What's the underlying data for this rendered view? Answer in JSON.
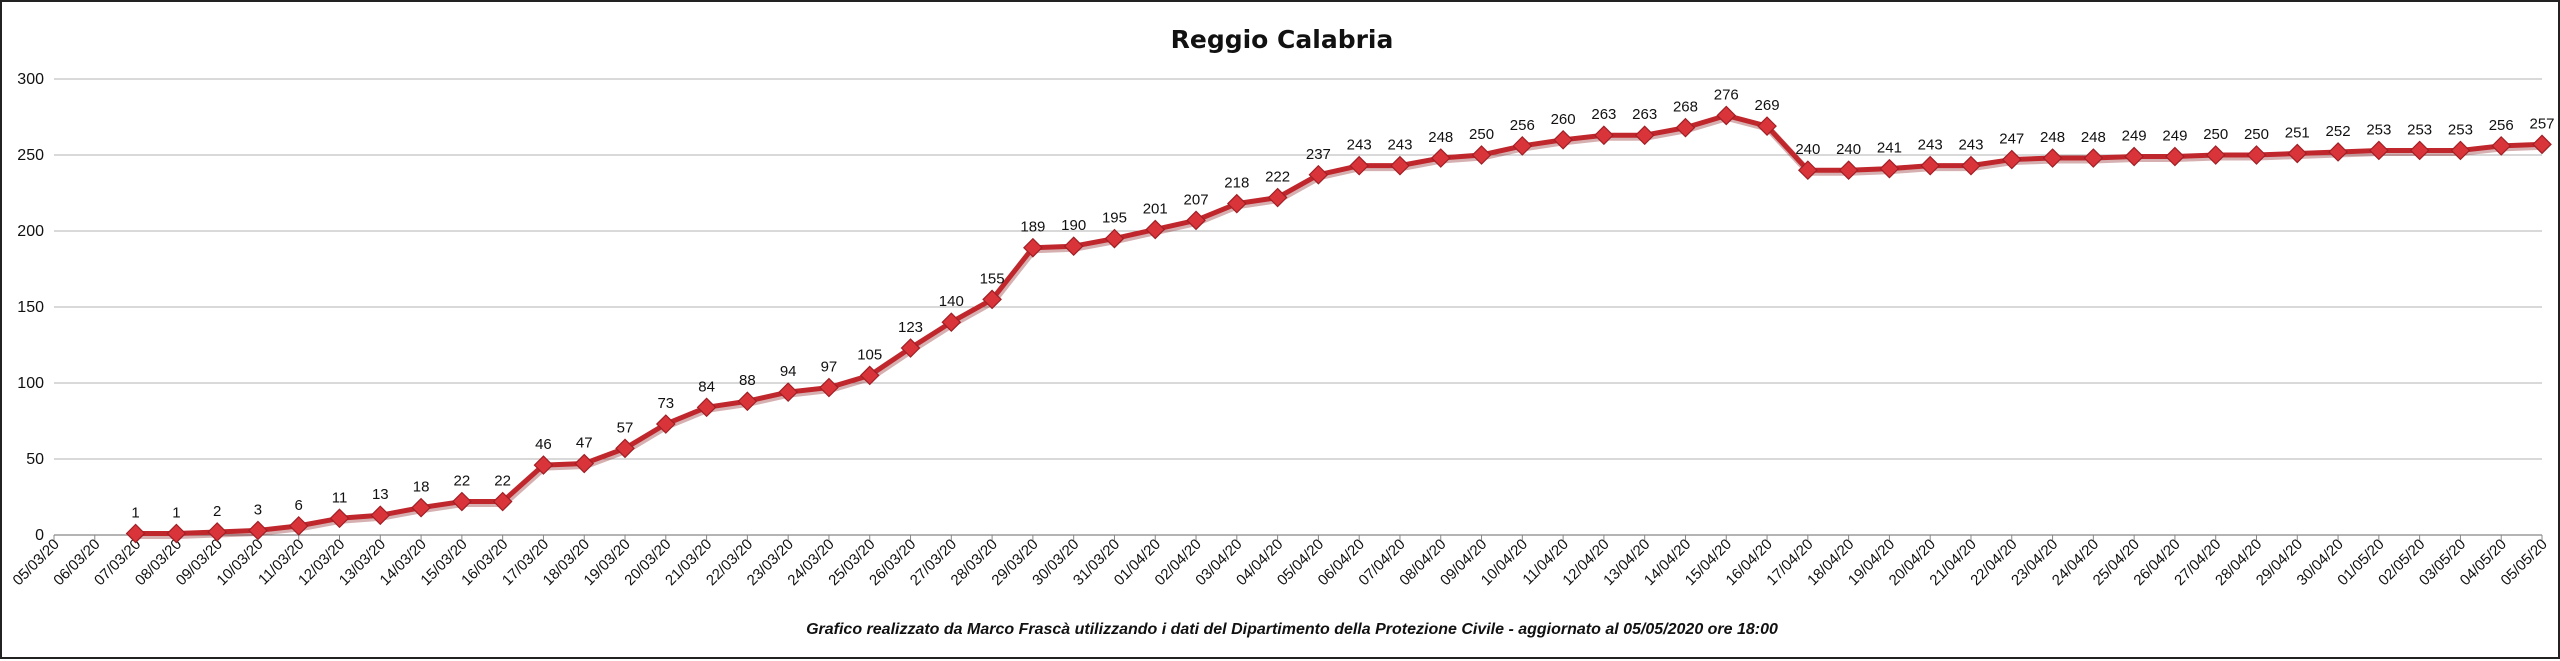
{
  "chart_data": {
    "type": "line",
    "title": "Reggio Calabria",
    "caption": "Grafico  realizzato da Marco Frascà  utilizzando i dati del Dipartimento  della Protezione Civile  - aggiornato al 05/05/2020 ore 18:00",
    "xlabel": "",
    "ylabel": "",
    "ylim": [
      0,
      300
    ],
    "yticks": [
      "0",
      "50",
      "100",
      "150",
      "200",
      "250",
      "300"
    ],
    "grid": true,
    "legend": "none",
    "line_color": "#c0272d",
    "marker_color": "#d9343a",
    "categories": [
      "05/03/20",
      "06/03/20",
      "07/03/20",
      "08/03/20",
      "09/03/20",
      "10/03/20",
      "11/03/20",
      "12/03/20",
      "13/03/20",
      "14/03/20",
      "15/03/20",
      "16/03/20",
      "17/03/20",
      "18/03/20",
      "19/03/20",
      "20/03/20",
      "21/03/20",
      "22/03/20",
      "23/03/20",
      "24/03/20",
      "25/03/20",
      "26/03/20",
      "27/03/20",
      "28/03/20",
      "29/03/20",
      "30/03/20",
      "31/03/20",
      "01/04/20",
      "02/04/20",
      "03/04/20",
      "04/04/20",
      "05/04/20",
      "06/04/20",
      "07/04/20",
      "08/04/20",
      "09/04/20",
      "10/04/20",
      "11/04/20",
      "12/04/20",
      "13/04/20",
      "14/04/20",
      "15/04/20",
      "16/04/20",
      "17/04/20",
      "18/04/20",
      "19/04/20",
      "20/04/20",
      "21/04/20",
      "22/04/20",
      "23/04/20",
      "24/04/20",
      "25/04/20",
      "26/04/20",
      "27/04/20",
      "28/04/20",
      "29/04/20",
      "30/04/20",
      "01/05/20",
      "02/05/20",
      "03/05/20",
      "04/05/20",
      "05/05/20"
    ],
    "values": [
      null,
      null,
      1,
      1,
      2,
      3,
      6,
      11,
      13,
      18,
      22,
      22,
      46,
      47,
      57,
      73,
      84,
      88,
      94,
      97,
      105,
      123,
      140,
      155,
      189,
      190,
      195,
      201,
      207,
      218,
      222,
      237,
      243,
      243,
      248,
      250,
      256,
      260,
      263,
      263,
      268,
      276,
      269,
      240,
      240,
      241,
      243,
      243,
      247,
      248,
      248,
      249,
      249,
      250,
      250,
      251,
      252,
      253,
      253,
      253,
      256,
      257
    ]
  }
}
